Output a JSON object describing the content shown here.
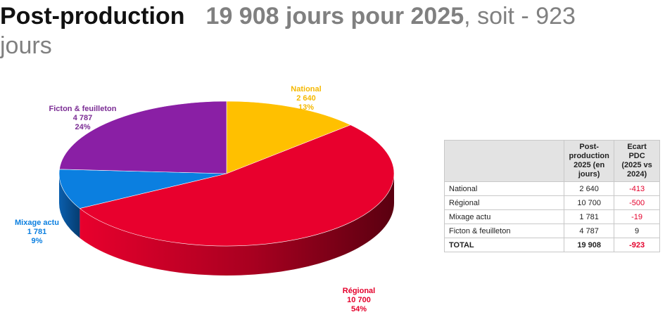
{
  "title": {
    "main": "Post-production",
    "subtitle_bold": "19 908 jours pour 2025",
    "subtitle_rest": ", soit - 923 jours"
  },
  "chart_data": {
    "type": "pie",
    "series": [
      {
        "name": "National",
        "value": 2640,
        "value_label": "2 640",
        "percent_label": "13%",
        "color": "#ffc000",
        "label_color": "#f5b800"
      },
      {
        "name": "Régional",
        "value": 10700,
        "value_label": "10 700",
        "percent_label": "54%",
        "color": "#e8002d",
        "label_color": "#e4002b"
      },
      {
        "name": "Mixage actu",
        "value": 1781,
        "value_label": "1 781",
        "percent_label": "9%",
        "color": "#0b7fe0",
        "label_color": "#0b7fe0"
      },
      {
        "name": "Ficton & feuilleton",
        "value": 4787,
        "value_label": "4 787",
        "percent_label": "24%",
        "color": "#8a1fa5",
        "label_color": "#7b2c94"
      }
    ]
  },
  "table": {
    "headers": [
      "",
      "Post-production 2025 (en jours)",
      "Ecart PDC (2025 vs 2024)"
    ],
    "rows": [
      {
        "label": "National",
        "value": "2 640",
        "diff": "-413"
      },
      {
        "label": "Régional",
        "value": "10 700",
        "diff": "-500"
      },
      {
        "label": "Mixage actu",
        "value": "1 781",
        "diff": "-19"
      },
      {
        "label": "Ficton & feuilleton",
        "value": "4 787",
        "diff": "9"
      }
    ],
    "total": {
      "label": "TOTAL",
      "value": "19 908",
      "diff": "-923"
    }
  }
}
